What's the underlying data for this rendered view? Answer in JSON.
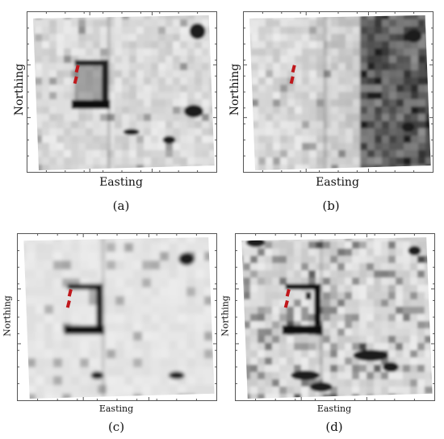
{
  "panels": [
    {
      "id": "a",
      "xlabel": "Easting",
      "ylabel": "Northing",
      "caption": "(a)",
      "theme": "sharp"
    },
    {
      "id": "b",
      "xlabel": "Easting",
      "ylabel": "Northing",
      "caption": "(b)",
      "theme": "dark-right"
    },
    {
      "id": "c",
      "xlabel": "Easting",
      "ylabel": "Northing",
      "caption": "(c)",
      "theme": "clean"
    },
    {
      "id": "d",
      "xlabel": "Easting",
      "ylabel": "Northing",
      "caption": "(d)",
      "theme": "textured"
    }
  ],
  "colors": {
    "marker": "#c0181c",
    "frame": "#555555",
    "anomaly": "#111111"
  }
}
